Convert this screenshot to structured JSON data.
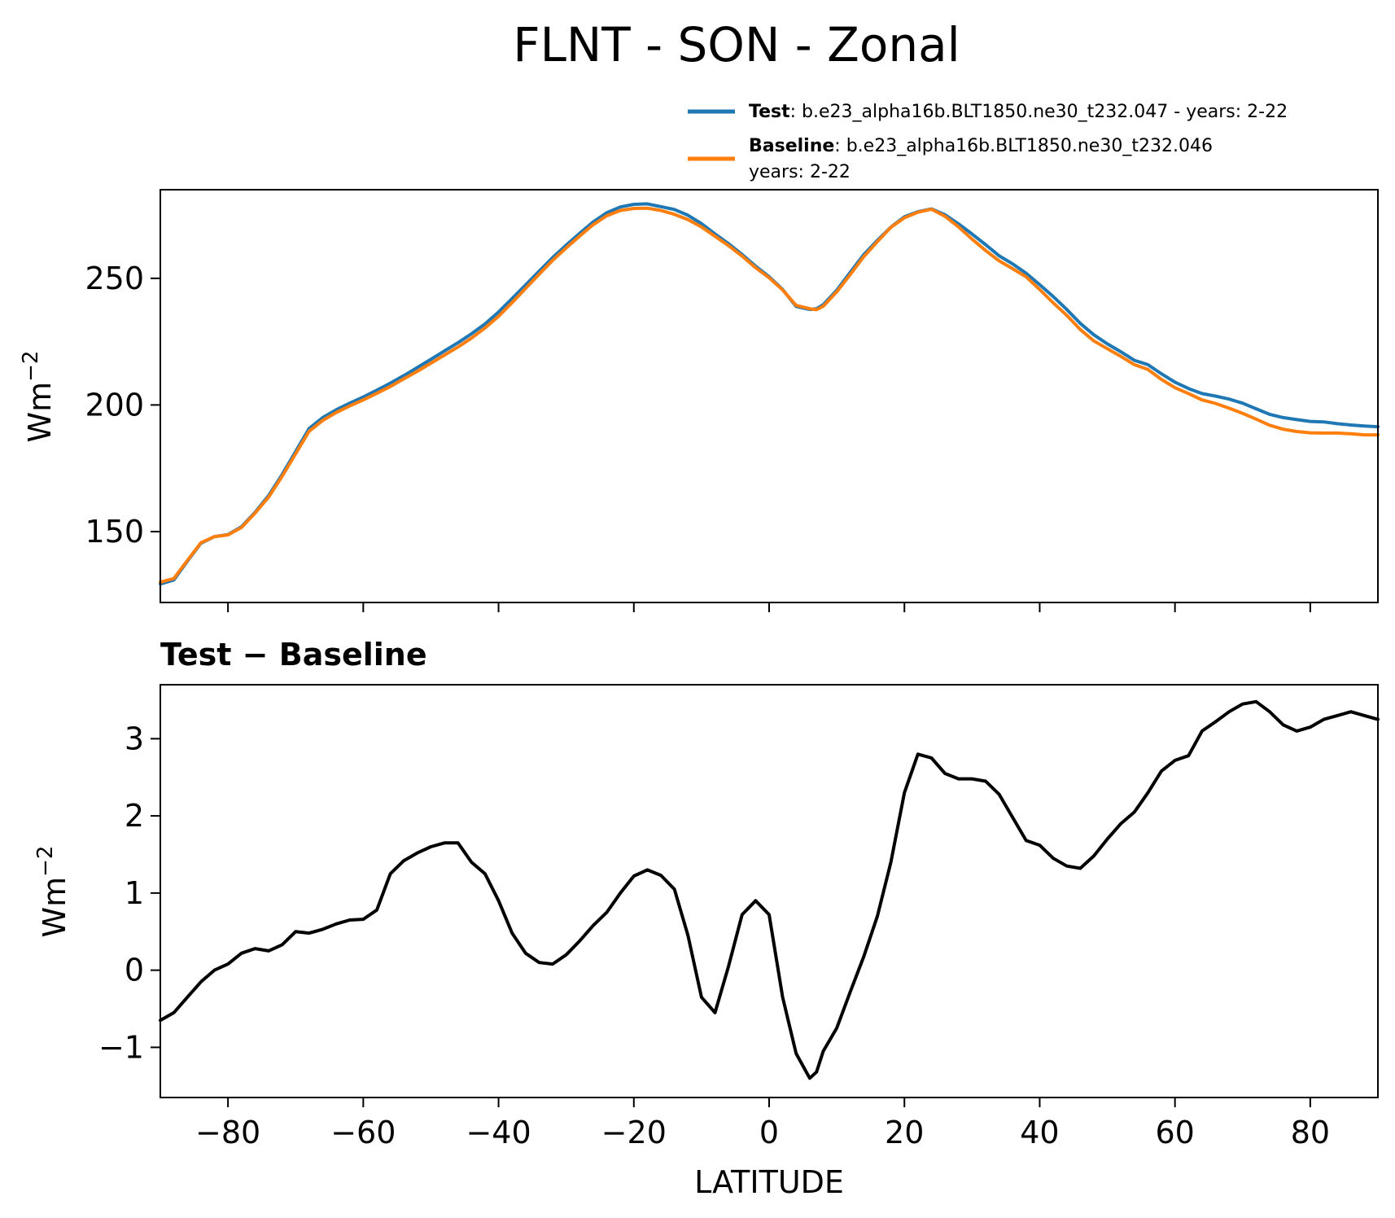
{
  "title": "FLNT - SON - Zonal",
  "legend": {
    "test_label": "Test",
    "test_text": ": b.e23_alpha16b.BLT1850.ne30_t232.047 - years: 2-22",
    "baseline_label": "Baseline",
    "baseline_text_line1": ": b.e23_alpha16b.BLT1850.ne30_t232.046",
    "baseline_text_line2": "years: 2-22"
  },
  "colors": {
    "test": "#1f77b4",
    "baseline": "#ff7f0e",
    "difference": "#000000"
  },
  "chart_data": [
    {
      "type": "line",
      "title": "",
      "xlabel": "",
      "ylabel": "Wm",
      "ylabel_sup": "−2",
      "xlim": [
        -90,
        90
      ],
      "ylim": [
        122,
        285
      ],
      "yticks": [
        150,
        200,
        250
      ],
      "ytick_labels": [
        "150",
        "200",
        "250"
      ],
      "xticks": [
        -80,
        -60,
        -40,
        -20,
        0,
        20,
        40,
        60,
        80
      ],
      "xtick_labels_shown": false,
      "legend_position": "above plot, right",
      "x": [
        -90,
        -88,
        -86,
        -84,
        -82,
        -80,
        -78,
        -76,
        -74,
        -72,
        -70,
        -68,
        -66,
        -64,
        -62,
        -60,
        -58,
        -56,
        -54,
        -52,
        -50,
        -48,
        -46,
        -44,
        -42,
        -40,
        -38,
        -36,
        -34,
        -32,
        -30,
        -28,
        -26,
        -24,
        -22,
        -20,
        -18,
        -16,
        -14,
        -12,
        -10,
        -8,
        -6,
        -4,
        -2,
        0,
        2,
        4,
        6,
        7,
        8,
        10,
        12,
        14,
        16,
        18,
        20,
        22,
        24,
        26,
        28,
        30,
        32,
        34,
        36,
        38,
        40,
        42,
        44,
        46,
        48,
        50,
        52,
        54,
        56,
        58,
        60,
        62,
        64,
        66,
        68,
        70,
        72,
        74,
        76,
        78,
        80,
        82,
        84,
        86,
        88,
        90
      ],
      "series": [
        {
          "name": "Test",
          "color": "#1f77b4",
          "values": [
            129.3,
            130.9,
            138.3,
            145.4,
            148.0,
            148.8,
            151.9,
            157.6,
            164.2,
            172.5,
            181.6,
            190.7,
            195.0,
            198.1,
            200.7,
            203.1,
            205.8,
            208.6,
            211.6,
            214.8,
            218.0,
            221.3,
            224.6,
            228.1,
            232.0,
            236.7,
            242.0,
            247.4,
            252.8,
            258.2,
            263.1,
            267.8,
            272.3,
            275.9,
            278.2,
            279.2,
            279.4,
            278.3,
            277.2,
            274.9,
            271.6,
            267.5,
            263.7,
            259.4,
            254.8,
            250.6,
            245.6,
            238.9,
            237.7,
            238.0,
            239.6,
            245.3,
            252.4,
            259.4,
            265.0,
            270.2,
            274.3,
            276.3,
            277.4,
            275.1,
            271.5,
            267.5,
            263.3,
            258.9,
            255.7,
            252.0,
            247.5,
            242.8,
            237.7,
            232.2,
            227.7,
            224.1,
            221.0,
            217.6,
            215.9,
            212.3,
            209.0,
            206.5,
            204.5,
            203.5,
            202.3,
            200.7,
            198.5,
            196.3,
            195.0,
            194.2,
            193.5,
            193.3,
            192.6,
            192.1,
            191.7,
            191.4
          ]
        },
        {
          "name": "Baseline",
          "color": "#ff7f0e",
          "values": [
            130.0,
            131.5,
            138.6,
            145.6,
            148.0,
            148.7,
            151.6,
            157.3,
            163.6,
            171.8,
            180.7,
            189.6,
            193.9,
            197.0,
            199.6,
            202.0,
            204.6,
            207.3,
            210.3,
            213.3,
            216.5,
            219.7,
            222.9,
            226.4,
            230.4,
            235.0,
            240.4,
            246.0,
            251.6,
            257.1,
            262.0,
            266.7,
            271.2,
            274.7,
            276.8,
            277.6,
            277.7,
            276.8,
            275.3,
            273.2,
            270.3,
            266.6,
            262.9,
            258.8,
            254.2,
            250.2,
            245.4,
            239.3,
            238.0,
            237.6,
            239.0,
            244.7,
            251.5,
            258.6,
            264.5,
            270.1,
            273.9,
            276.1,
            277.3,
            274.5,
            270.3,
            265.5,
            261.0,
            256.9,
            253.8,
            250.6,
            245.6,
            240.3,
            235.4,
            229.8,
            225.3,
            222.2,
            219.2,
            215.9,
            214.0,
            210.1,
            206.8,
            204.5,
            202.0,
            200.6,
            198.7,
            196.7,
            194.4,
            192.0,
            190.4,
            189.5,
            189.0,
            188.9,
            188.9,
            188.6,
            188.2,
            188.2
          ]
        }
      ]
    },
    {
      "type": "line",
      "title": "Test − Baseline",
      "xlabel": "LATITUDE",
      "ylabel": "Wm",
      "ylabel_sup": "−2",
      "xlim": [
        -90,
        90
      ],
      "ylim": [
        -1.65,
        3.7
      ],
      "yticks": [
        -1,
        0,
        1,
        2,
        3
      ],
      "ytick_labels": [
        "−1",
        "0",
        "1",
        "2",
        "3"
      ],
      "xticks": [
        -80,
        -60,
        -40,
        -20,
        0,
        20,
        40,
        60,
        80
      ],
      "xtick_labels": [
        "−80",
        "−60",
        "−40",
        "−20",
        "0",
        "20",
        "40",
        "60",
        "80"
      ],
      "x": [
        -90,
        -88,
        -86,
        -84,
        -82,
        -80,
        -78,
        -76,
        -74,
        -72,
        -70,
        -68,
        -66,
        -64,
        -62,
        -60,
        -58,
        -56,
        -54,
        -52,
        -50,
        -48,
        -46,
        -44,
        -42,
        -40,
        -38,
        -36,
        -34,
        -32,
        -30,
        -28,
        -26,
        -24,
        -22,
        -20,
        -18,
        -16,
        -14,
        -12,
        -10,
        -8,
        -6,
        -4,
        -2,
        0,
        2,
        4,
        6,
        7,
        8,
        10,
        12,
        14,
        16,
        18,
        20,
        22,
        24,
        26,
        28,
        30,
        32,
        34,
        36,
        38,
        40,
        42,
        44,
        46,
        48,
        50,
        52,
        54,
        56,
        58,
        60,
        62,
        64,
        66,
        68,
        70,
        72,
        74,
        76,
        78,
        80,
        82,
        84,
        86,
        88,
        90
      ],
      "series": [
        {
          "name": "Test − Baseline",
          "color": "#000000",
          "values": [
            -0.65,
            -0.55,
            -0.35,
            -0.15,
            0.0,
            0.08,
            0.22,
            0.28,
            0.25,
            0.33,
            0.5,
            0.48,
            0.53,
            0.6,
            0.65,
            0.66,
            0.78,
            1.25,
            1.42,
            1.52,
            1.6,
            1.65,
            1.65,
            1.4,
            1.25,
            0.9,
            0.48,
            0.22,
            0.1,
            0.08,
            0.2,
            0.38,
            0.58,
            0.75,
            1.0,
            1.22,
            1.3,
            1.23,
            1.05,
            0.45,
            -0.35,
            -0.55,
            0.05,
            0.72,
            0.9,
            0.72,
            -0.35,
            -1.08,
            -1.4,
            -1.32,
            -1.05,
            -0.75,
            -0.28,
            0.18,
            0.7,
            1.4,
            2.3,
            2.8,
            2.75,
            2.55,
            2.48,
            2.48,
            2.45,
            2.28,
            1.98,
            1.68,
            1.62,
            1.45,
            1.35,
            1.32,
            1.48,
            1.7,
            1.9,
            2.05,
            2.3,
            2.58,
            2.72,
            2.78,
            3.1,
            3.22,
            3.35,
            3.45,
            3.48,
            3.35,
            3.18,
            3.1,
            3.15,
            3.25,
            3.3,
            3.35,
            3.3,
            3.25
          ]
        }
      ]
    }
  ]
}
